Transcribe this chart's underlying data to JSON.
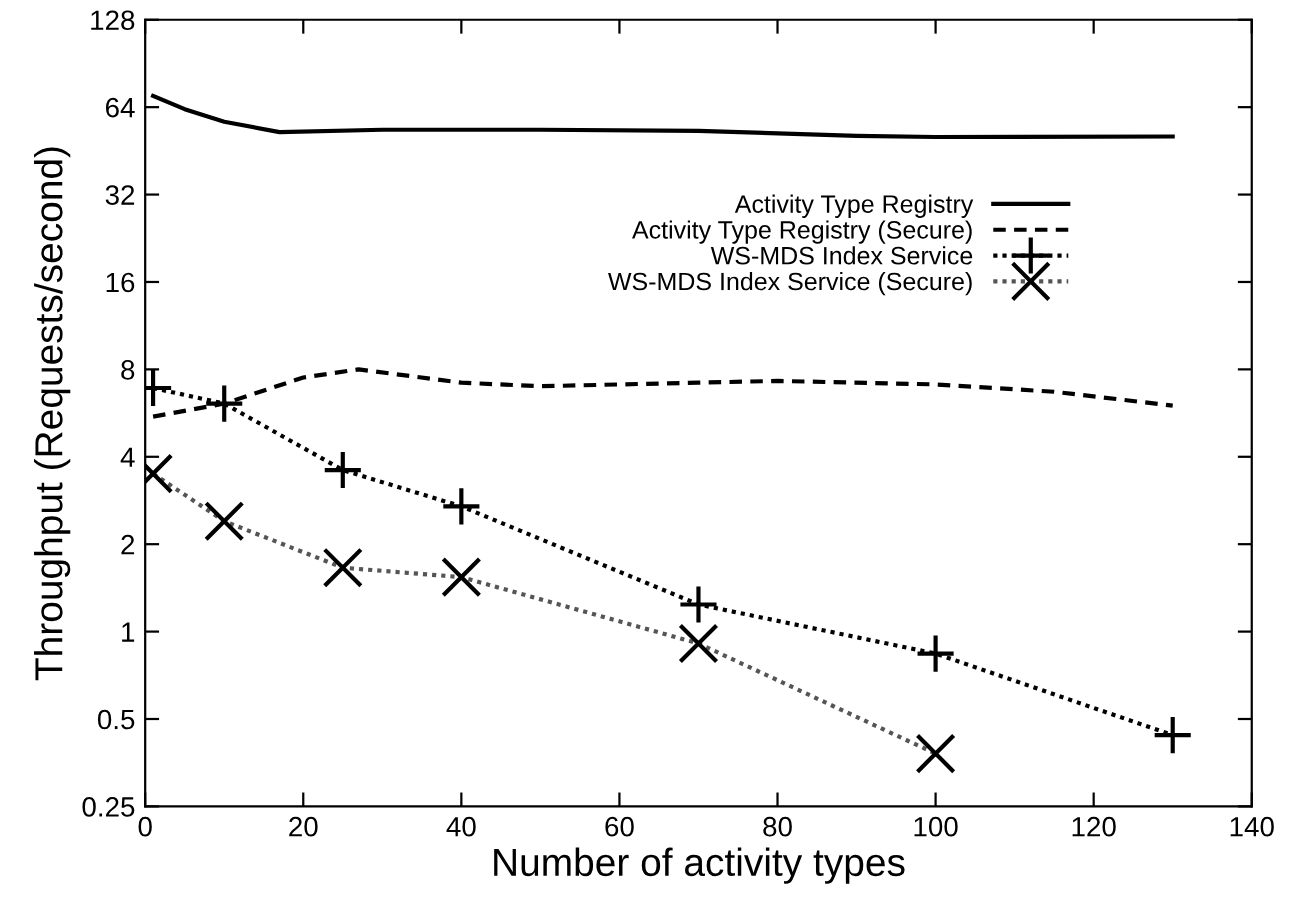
{
  "chart_data": {
    "type": "line",
    "xlabel": "Number of activity types",
    "ylabel": "Throughput (Requests/second)",
    "log": "y",
    "xlim": [
      0,
      140
    ],
    "xticks": [
      0,
      20,
      40,
      60,
      80,
      100,
      120,
      140
    ],
    "ylim": [
      0.25,
      128
    ],
    "yticks": [
      0.25,
      0.5,
      1,
      2,
      4,
      8,
      16,
      32,
      64,
      128
    ],
    "legend": "top right",
    "grid": false,
    "series": [
      {
        "name": "Activity Type Registry",
        "color": "#000000",
        "line_style": "solid",
        "marker": "none",
        "x": [
          1,
          5,
          10,
          17,
          30,
          50,
          70,
          90,
          100,
          130
        ],
        "values": [
          70,
          63,
          57,
          52.5,
          53.5,
          53.5,
          53,
          51,
          50.5,
          50.7
        ]
      },
      {
        "name": "Activity Type Registry (Secure)",
        "color": "#000000",
        "line_style": "dashed",
        "marker": "none",
        "x": [
          1,
          10,
          20,
          27,
          40,
          50,
          70,
          80,
          100,
          115,
          130
        ],
        "values": [
          5.5,
          6.1,
          7.5,
          8,
          7.2,
          7,
          7.2,
          7.3,
          7.1,
          6.7,
          6
        ]
      },
      {
        "name": "WS-MDS Index Service",
        "color": "#000000",
        "line_style": "dotted",
        "marker": "cross",
        "x": [
          1,
          10,
          25,
          40,
          70,
          100,
          130
        ],
        "values": [
          6.9,
          6.1,
          3.6,
          2.7,
          1.24,
          0.84,
          0.44
        ]
      },
      {
        "name": "WS-MDS Index Service (Secure)",
        "color": "#555555",
        "line_style": "dotted",
        "marker": "x",
        "x": [
          1,
          10,
          25,
          40,
          70,
          100
        ],
        "values": [
          3.5,
          2.4,
          1.66,
          1.54,
          0.91,
          0.38
        ]
      }
    ]
  }
}
